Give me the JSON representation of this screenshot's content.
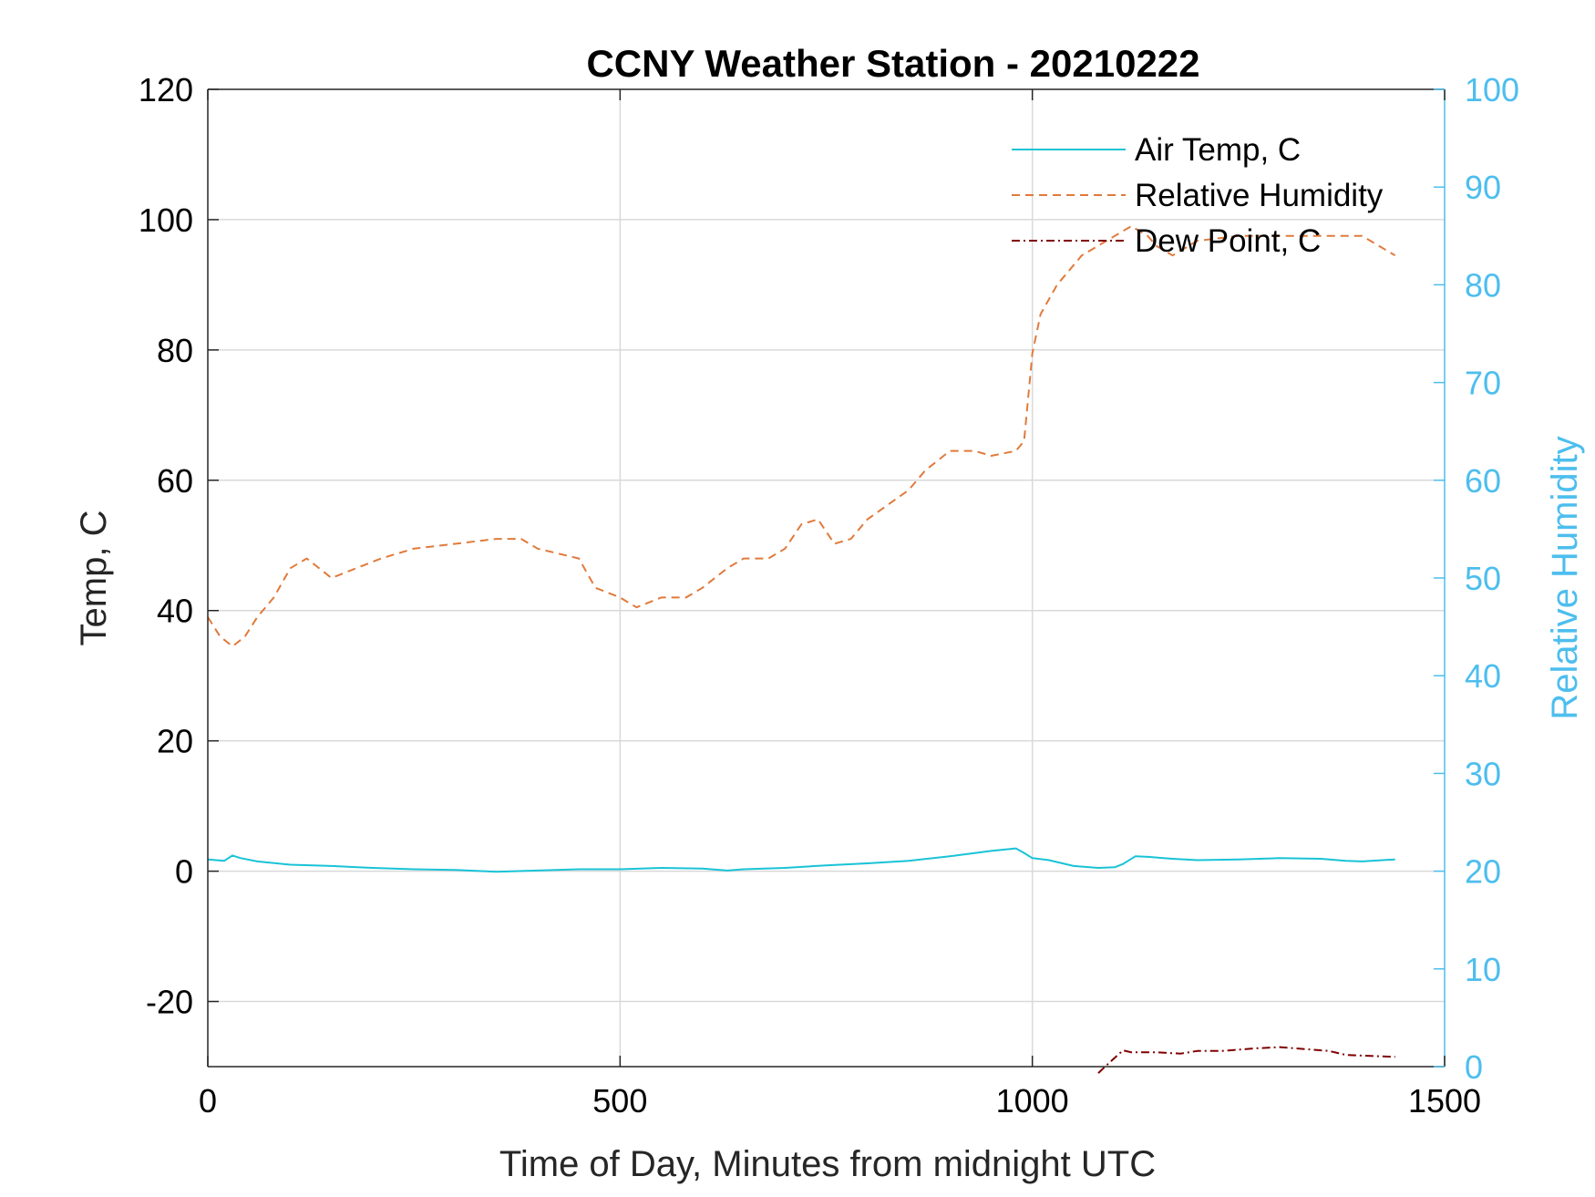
{
  "chart_data": {
    "type": "line",
    "title": "CCNY Weather Station - 20210222",
    "xlabel": "Time of Day, Minutes from midnight UTC",
    "ylabel_left": "Temp, C",
    "ylabel_right": "Relative Humidity",
    "xlim": [
      0,
      1500
    ],
    "ylim_left": [
      -30,
      120
    ],
    "ylim_right": [
      0,
      100
    ],
    "xticks": [
      0,
      500,
      1000,
      1500
    ],
    "xtick_labels": [
      "0",
      "500",
      "1000",
      "1500"
    ],
    "yticks_left": [
      -20,
      0,
      20,
      40,
      60,
      80,
      100,
      120
    ],
    "ytick_labels_left": [
      "-20",
      "0",
      "20",
      "40",
      "60",
      "80",
      "100",
      "120"
    ],
    "yticks_right": [
      0,
      10,
      20,
      30,
      40,
      50,
      60,
      70,
      80,
      90,
      100
    ],
    "ytick_labels_right": [
      "0",
      "10",
      "20",
      "30",
      "40",
      "50",
      "60",
      "70",
      "80",
      "90",
      "100"
    ],
    "grid": true,
    "legend_position": "top-right",
    "series": [
      {
        "name": "Air Temp, C",
        "axis": "left",
        "color": "#19c3d6",
        "style": "solid",
        "x": [
          0,
          20,
          30,
          40,
          60,
          100,
          150,
          200,
          250,
          300,
          350,
          400,
          450,
          500,
          550,
          600,
          630,
          650,
          700,
          750,
          800,
          850,
          900,
          950,
          980,
          990,
          1000,
          1020,
          1050,
          1080,
          1100,
          1110,
          1125,
          1140,
          1170,
          1200,
          1250,
          1300,
          1350,
          1380,
          1400,
          1440
        ],
        "y": [
          1.8,
          1.6,
          2.4,
          2.0,
          1.5,
          1.0,
          0.8,
          0.5,
          0.3,
          0.2,
          -0.1,
          0.1,
          0.3,
          0.3,
          0.5,
          0.4,
          0.1,
          0.3,
          0.5,
          0.9,
          1.2,
          1.6,
          2.3,
          3.1,
          3.5,
          2.8,
          2.0,
          1.7,
          0.8,
          0.5,
          0.6,
          1.1,
          2.3,
          2.2,
          1.9,
          1.7,
          1.8,
          2.0,
          1.9,
          1.6,
          1.5,
          1.8
        ]
      },
      {
        "name": "Relative Humidity",
        "axis": "right",
        "color": "#e07a3c",
        "style": "dashed",
        "x": [
          0,
          15,
          30,
          45,
          60,
          80,
          100,
          120,
          150,
          180,
          210,
          250,
          300,
          350,
          380,
          400,
          450,
          470,
          500,
          520,
          550,
          580,
          600,
          630,
          650,
          680,
          700,
          720,
          740,
          760,
          780,
          800,
          850,
          870,
          900,
          930,
          950,
          980,
          990,
          1000,
          1010,
          1030,
          1060,
          1100,
          1120,
          1140,
          1150,
          1170,
          1200,
          1250,
          1300,
          1350,
          1400,
          1420,
          1440
        ],
        "y": [
          46,
          44,
          43,
          44,
          46,
          48,
          51,
          52,
          50,
          51,
          52,
          53,
          53.5,
          54,
          54,
          53,
          52,
          49,
          48,
          47,
          48,
          48,
          49,
          51,
          52,
          52,
          53,
          55.5,
          56,
          53.5,
          54,
          56,
          59,
          61,
          63,
          63,
          62.5,
          63,
          64,
          73,
          77,
          80,
          83,
          85,
          86,
          85,
          84,
          83,
          84.5,
          85,
          85,
          85,
          85,
          84,
          83
        ]
      },
      {
        "name": "Dew Point, C",
        "axis": "left",
        "color": "#800000",
        "style": "dashdot",
        "x": [
          1080,
          1095,
          1110,
          1120,
          1150,
          1180,
          1200,
          1230,
          1270,
          1300,
          1330,
          1360,
          1380,
          1400,
          1440
        ],
        "y": [
          -31,
          -29.2,
          -27.5,
          -27.8,
          -27.8,
          -28.0,
          -27.6,
          -27.6,
          -27.2,
          -27.0,
          -27.3,
          -27.6,
          -28.2,
          -28.3,
          -28.5
        ]
      }
    ]
  }
}
